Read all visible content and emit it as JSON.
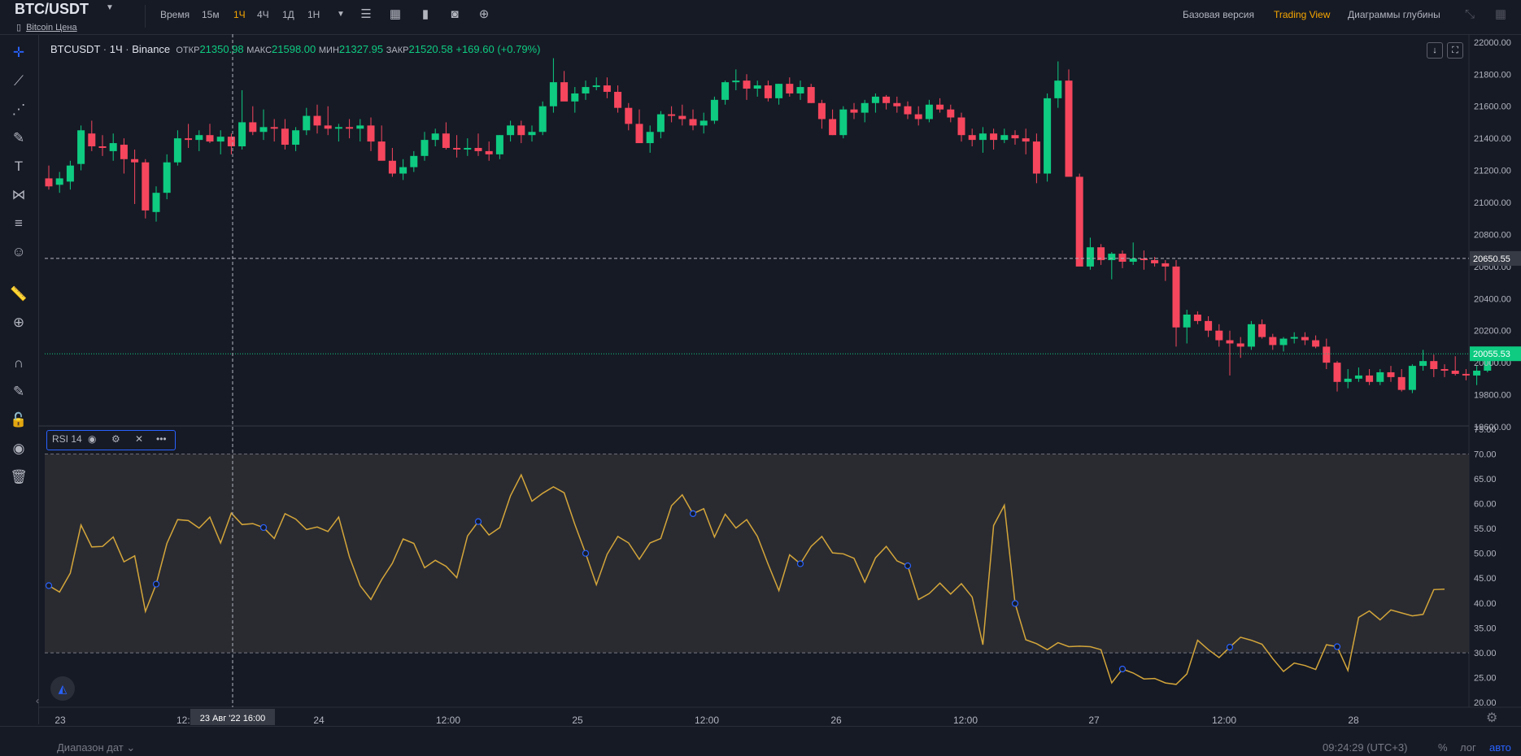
{
  "header": {
    "symbol": "BTC/USDT",
    "subtitle": "Bitcoin Цена",
    "timeframes": [
      "Время",
      "15м",
      "1Ч",
      "4Ч",
      "1Д",
      "1Н"
    ],
    "active_timeframe": "1Ч",
    "views": [
      "Базовая версия",
      "Trading View",
      "Диаграммы глубины"
    ],
    "active_view": "Trading View",
    "accent_color": "#f7a600"
  },
  "legend": {
    "pair": "BTCUSDT",
    "interval": "1Ч",
    "exchange": "Binance",
    "open_label": "ОТКР",
    "open": "21350.98",
    "high_label": "МАКС",
    "high": "21598.00",
    "low_label": "МИН",
    "low": "21327.95",
    "close_label": "ЗАКР",
    "close": "21520.58",
    "change": "+169.60 (+0.79%)"
  },
  "rsi_legend": {
    "label": "RSI 14"
  },
  "bottom": {
    "date_range": "Диапазон дат",
    "clock": "09:24:29 (UTC+3)",
    "percent": "%",
    "log": "лог",
    "auto": "авто"
  },
  "crosshair_label": "23 Авг '22   16:00",
  "chart_data": [
    {
      "type": "candlestick",
      "up_color": "#0ecb81",
      "down_color": "#f6465d",
      "price_axis_ticks": [
        "22000.00",
        "21800.00",
        "21600.00",
        "21400.00",
        "21200.00",
        "21000.00",
        "20800.00",
        "20600.00",
        "20400.00",
        "20200.00",
        "20000.00",
        "19800.00",
        "19600.00"
      ],
      "ylim": [
        19600,
        22050
      ],
      "time_axis_ticks": [
        "23",
        "12:00",
        "24",
        "12:00",
        "25",
        "12:00",
        "26",
        "12:00",
        "27",
        "12:00",
        "28"
      ],
      "crosshair_price": "20650.55",
      "last_price": "20055.53",
      "ohlc": [
        [
          21150,
          21230,
          21080,
          21100
        ],
        [
          21110,
          21190,
          21060,
          21150
        ],
        [
          21130,
          21260,
          21080,
          21230
        ],
        [
          21240,
          21480,
          21200,
          21450
        ],
        [
          21430,
          21510,
          21320,
          21350
        ],
        [
          21350,
          21420,
          21290,
          21340
        ],
        [
          21320,
          21430,
          21260,
          21370
        ],
        [
          21360,
          21400,
          21180,
          21270
        ],
        [
          21270,
          21330,
          20990,
          21250
        ],
        [
          21250,
          21270,
          20900,
          20950
        ],
        [
          20940,
          21100,
          20880,
          21060
        ],
        [
          21060,
          21300,
          21020,
          21250
        ],
        [
          21250,
          21450,
          21230,
          21400
        ],
        [
          21400,
          21490,
          21340,
          21390
        ],
        [
          21390,
          21450,
          21320,
          21420
        ],
        [
          21420,
          21490,
          21370,
          21380
        ],
        [
          21380,
          21450,
          21300,
          21410
        ],
        [
          21410,
          21430,
          21300,
          21350
        ],
        [
          21350,
          21700,
          21330,
          21500
        ],
        [
          21500,
          21600,
          21420,
          21440
        ],
        [
          21440,
          21580,
          21390,
          21470
        ],
        [
          21470,
          21520,
          21380,
          21460
        ],
        [
          21460,
          21520,
          21330,
          21360
        ],
        [
          21360,
          21470,
          21320,
          21450
        ],
        [
          21450,
          21590,
          21420,
          21540
        ],
        [
          21540,
          21610,
          21430,
          21480
        ],
        [
          21480,
          21600,
          21420,
          21460
        ],
        [
          21460,
          21490,
          21380,
          21470
        ],
        [
          21470,
          21520,
          21400,
          21460
        ],
        [
          21460,
          21520,
          21380,
          21480
        ],
        [
          21480,
          21530,
          21320,
          21380
        ],
        [
          21380,
          21480,
          21280,
          21260
        ],
        [
          21260,
          21340,
          21160,
          21180
        ],
        [
          21180,
          21270,
          21140,
          21220
        ],
        [
          21220,
          21320,
          21190,
          21290
        ],
        [
          21290,
          21440,
          21260,
          21390
        ],
        [
          21390,
          21460,
          21350,
          21430
        ],
        [
          21430,
          21500,
          21330,
          21340
        ],
        [
          21340,
          21420,
          21280,
          21330
        ],
        [
          21330,
          21400,
          21290,
          21340
        ],
        [
          21340,
          21430,
          21290,
          21320
        ],
        [
          21320,
          21380,
          21260,
          21300
        ],
        [
          21300,
          21420,
          21270,
          21420
        ],
        [
          21420,
          21510,
          21380,
          21480
        ],
        [
          21480,
          21510,
          21370,
          21420
        ],
        [
          21420,
          21480,
          21380,
          21440
        ],
        [
          21440,
          21630,
          21420,
          21600
        ],
        [
          21600,
          21900,
          21560,
          21750
        ],
        [
          21750,
          21820,
          21640,
          21630
        ],
        [
          21630,
          21720,
          21560,
          21680
        ],
        [
          21680,
          21760,
          21640,
          21720
        ],
        [
          21720,
          21780,
          21700,
          21730
        ],
        [
          21730,
          21780,
          21650,
          21690
        ],
        [
          21690,
          21730,
          21560,
          21590
        ],
        [
          21590,
          21620,
          21450,
          21490
        ],
        [
          21490,
          21580,
          21370,
          21370
        ],
        [
          21370,
          21480,
          21310,
          21440
        ],
        [
          21440,
          21570,
          21400,
          21550
        ],
        [
          21550,
          21600,
          21500,
          21540
        ],
        [
          21540,
          21610,
          21480,
          21520
        ],
        [
          21520,
          21580,
          21450,
          21480
        ],
        [
          21480,
          21560,
          21430,
          21510
        ],
        [
          21510,
          21660,
          21490,
          21640
        ],
        [
          21640,
          21760,
          21610,
          21750
        ],
        [
          21750,
          21830,
          21700,
          21760
        ],
        [
          21760,
          21800,
          21640,
          21710
        ],
        [
          21710,
          21760,
          21660,
          21730
        ],
        [
          21730,
          21760,
          21630,
          21650
        ],
        [
          21650,
          21740,
          21610,
          21740
        ],
        [
          21740,
          21780,
          21660,
          21680
        ],
        [
          21680,
          21760,
          21640,
          21720
        ],
        [
          21720,
          21740,
          21620,
          21620
        ],
        [
          21620,
          21640,
          21460,
          21520
        ],
        [
          21520,
          21580,
          21420,
          21420
        ],
        [
          21420,
          21600,
          21400,
          21580
        ],
        [
          21580,
          21620,
          21520,
          21560
        ],
        [
          21560,
          21640,
          21500,
          21620
        ],
        [
          21620,
          21680,
          21560,
          21660
        ],
        [
          21660,
          21670,
          21580,
          21620
        ],
        [
          21620,
          21660,
          21560,
          21600
        ],
        [
          21600,
          21630,
          21520,
          21550
        ],
        [
          21550,
          21600,
          21480,
          21520
        ],
        [
          21520,
          21640,
          21500,
          21610
        ],
        [
          21610,
          21650,
          21560,
          21580
        ],
        [
          21580,
          21610,
          21500,
          21530
        ],
        [
          21530,
          21560,
          21380,
          21420
        ],
        [
          21420,
          21460,
          21350,
          21390
        ],
        [
          21390,
          21470,
          21310,
          21430
        ],
        [
          21430,
          21460,
          21330,
          21390
        ],
        [
          21390,
          21460,
          21370,
          21420
        ],
        [
          21420,
          21450,
          21360,
          21400
        ],
        [
          21400,
          21460,
          21300,
          21380
        ],
        [
          21380,
          21430,
          21120,
          21180
        ],
        [
          21180,
          21680,
          21130,
          21650
        ],
        [
          21650,
          21880,
          21590,
          21760
        ],
        [
          21760,
          21830,
          21180,
          21160
        ],
        [
          21160,
          21180,
          20620,
          20600
        ],
        [
          20600,
          20780,
          20580,
          20720
        ],
        [
          20720,
          20740,
          20610,
          20640
        ],
        [
          20640,
          20690,
          20520,
          20680
        ],
        [
          20680,
          20700,
          20590,
          20630
        ],
        [
          20630,
          20750,
          20610,
          20650
        ],
        [
          20650,
          20700,
          20580,
          20640
        ],
        [
          20640,
          20660,
          20600,
          20620
        ],
        [
          20620,
          20640,
          20510,
          20600
        ],
        [
          20600,
          20640,
          20100,
          20220
        ],
        [
          20220,
          20330,
          20120,
          20300
        ],
        [
          20300,
          20320,
          20240,
          20260
        ],
        [
          20260,
          20290,
          20160,
          20200
        ],
        [
          20200,
          20240,
          20100,
          20140
        ],
        [
          20140,
          20200,
          19920,
          20120
        ],
        [
          20120,
          20160,
          20030,
          20100
        ],
        [
          20100,
          20260,
          20080,
          20240
        ],
        [
          20240,
          20270,
          20150,
          20160
        ],
        [
          20160,
          20180,
          20080,
          20110
        ],
        [
          20110,
          20160,
          20070,
          20150
        ],
        [
          20150,
          20190,
          20120,
          20160
        ],
        [
          20160,
          20190,
          20110,
          20140
        ],
        [
          20140,
          20170,
          20090,
          20100
        ],
        [
          20100,
          20150,
          19960,
          20000
        ],
        [
          20000,
          20010,
          19820,
          19880
        ],
        [
          19880,
          19960,
          19840,
          19900
        ],
        [
          19900,
          19970,
          19880,
          19920
        ],
        [
          19920,
          19960,
          19860,
          19880
        ],
        [
          19880,
          19960,
          19860,
          19940
        ],
        [
          19940,
          19980,
          19880,
          19910
        ],
        [
          19910,
          19960,
          19820,
          19830
        ],
        [
          19830,
          19990,
          19810,
          19980
        ],
        [
          19980,
          20080,
          19950,
          20010
        ],
        [
          20010,
          20050,
          19910,
          19960
        ],
        [
          19960,
          19990,
          19910,
          19950
        ],
        [
          19950,
          20040,
          19920,
          19930
        ],
        [
          19930,
          19960,
          19890,
          19920
        ],
        [
          19920,
          19980,
          19860,
          19950
        ],
        [
          19950,
          20060,
          19940,
          20020
        ],
        [
          20020,
          20060,
          19990,
          20055
        ]
      ]
    },
    {
      "type": "line",
      "series": [
        {
          "name": "RSI 14",
          "color": "#d4a63a"
        }
      ],
      "axis_ticks": [
        "75.00",
        "70.00",
        "65.00",
        "60.00",
        "55.00",
        "50.00",
        "45.00",
        "40.00",
        "35.00",
        "30.00",
        "25.00",
        "20.00"
      ],
      "ylim": [
        19,
        75.5
      ],
      "bands": [
        30,
        70
      ],
      "values": [
        43.5,
        42.2,
        46,
        55.7,
        51.3,
        51.4,
        53.3,
        48.3,
        49.5,
        38.3,
        43.8,
        52,
        56.8,
        56.6,
        55.1,
        57.3,
        52.1,
        58.1,
        55.8,
        56,
        55.2,
        53,
        58,
        56.9,
        54.8,
        55.3,
        54.4,
        57.3,
        49.3,
        43.5,
        40.7,
        44.7,
        48,
        52.9,
        52,
        47.1,
        48.6,
        47.4,
        45.1,
        53.5,
        56.4,
        53.7,
        55.2,
        61.6,
        65.8,
        60.5,
        62.1,
        63.4,
        62.2,
        55.8,
        50,
        43.7,
        49.8,
        53.4,
        52.1,
        48.8,
        52.1,
        53,
        59.6,
        61.8,
        58,
        59,
        53.3,
        57.9,
        55.1,
        56.8,
        53.4,
        47.8,
        42.5,
        49.7,
        47.9,
        51.4,
        53.4,
        50.1,
        49.9,
        49,
        44.2,
        49.1,
        51.4,
        48.5,
        47.5,
        40.7,
        41.9,
        44,
        41.8,
        43.9,
        41.2,
        31.6,
        55.6,
        59.7,
        39.9,
        32.6,
        31.8,
        30.6,
        32,
        31.2,
        31.3,
        31.2,
        30.6,
        23.9,
        26.7,
        25.9,
        24.7,
        24.8,
        23.9,
        23.6,
        25.7,
        32.5,
        30.6,
        29,
        31.1,
        33.1,
        32.5,
        31.7,
        28.8,
        26.2,
        27.9,
        27.4,
        26.6,
        31.6,
        31.2,
        26.4,
        37.1,
        38.4,
        36.6,
        38.6,
        38,
        37.4,
        37.7,
        42.7,
        42.8
      ],
      "marker_indices": [
        0,
        10,
        20,
        40,
        50,
        60,
        70,
        80,
        90,
        100,
        110,
        120,
        131
      ]
    }
  ]
}
